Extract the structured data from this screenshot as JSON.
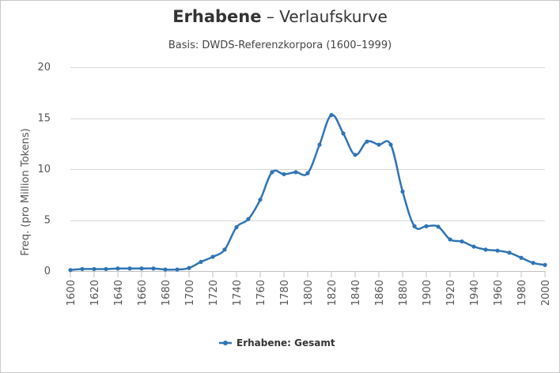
{
  "chart_data": {
    "type": "line",
    "title_main": "Erhabene",
    "title_rest": " – Verlaufskurve",
    "subtitle": "Basis: DWDS-Referenzkorpora (1600–1999)",
    "xlabel": "",
    "ylabel": "Freq. (pro Million Tokens)",
    "xlim": [
      1600,
      2000
    ],
    "ylim": [
      0,
      20
    ],
    "x_ticks": [
      1600,
      1620,
      1640,
      1660,
      1680,
      1700,
      1720,
      1740,
      1760,
      1780,
      1800,
      1820,
      1840,
      1860,
      1880,
      1900,
      1920,
      1940,
      1960,
      1980,
      2000
    ],
    "y_ticks": [
      0,
      5,
      10,
      15,
      20
    ],
    "grid": "horizontal",
    "legend_position": "bottom-center",
    "series": [
      {
        "name": "Erhabene: Gesamt",
        "color": "#2f74b4",
        "x": [
          1600,
          1610,
          1620,
          1630,
          1640,
          1650,
          1660,
          1670,
          1680,
          1690,
          1700,
          1710,
          1720,
          1730,
          1740,
          1750,
          1760,
          1770,
          1780,
          1790,
          1800,
          1810,
          1820,
          1830,
          1840,
          1850,
          1860,
          1870,
          1880,
          1890,
          1900,
          1910,
          1920,
          1930,
          1940,
          1950,
          1960,
          1970,
          1980,
          1990,
          2000
        ],
        "values": [
          0.1,
          0.2,
          0.2,
          0.2,
          0.25,
          0.25,
          0.25,
          0.25,
          0.15,
          0.15,
          0.3,
          0.9,
          1.4,
          2.1,
          4.3,
          5.1,
          7.0,
          9.7,
          9.5,
          9.7,
          9.6,
          12.4,
          15.3,
          13.5,
          11.4,
          12.7,
          12.4,
          12.4,
          7.8,
          4.4,
          4.4,
          4.35,
          3.1,
          2.9,
          2.4,
          2.1,
          2.0,
          1.8,
          1.3,
          0.8,
          0.6
        ]
      }
    ]
  }
}
